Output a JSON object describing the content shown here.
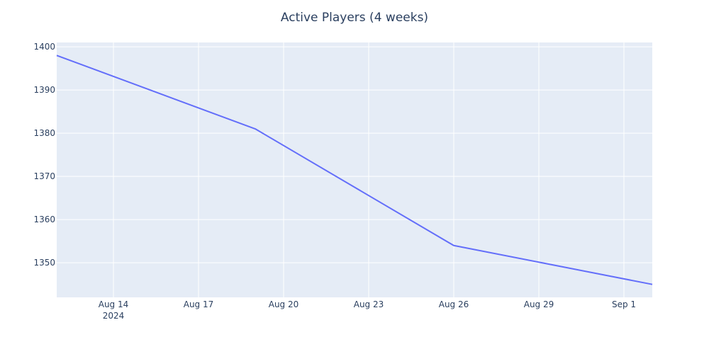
{
  "chart_data": {
    "type": "line",
    "title": "Active Players (4 weeks)",
    "xlabel": "",
    "ylabel": "",
    "x_type": "date",
    "x_range": [
      "2024-08-12",
      "2024-09-02"
    ],
    "y_range": [
      1342,
      1401
    ],
    "x_ticks": [
      {
        "date": "2024-08-14",
        "label": "Aug 14",
        "sublabel": "2024"
      },
      {
        "date": "2024-08-17",
        "label": "Aug 17"
      },
      {
        "date": "2024-08-20",
        "label": "Aug 20"
      },
      {
        "date": "2024-08-23",
        "label": "Aug 23"
      },
      {
        "date": "2024-08-26",
        "label": "Aug 26"
      },
      {
        "date": "2024-08-29",
        "label": "Aug 29"
      },
      {
        "date": "2024-09-01",
        "label": "Sep 1"
      }
    ],
    "y_ticks": [
      1350,
      1360,
      1370,
      1380,
      1390,
      1400
    ],
    "series": [
      {
        "color": "#636efa",
        "points": [
          {
            "x": "2024-08-12",
            "y": 1398
          },
          {
            "x": "2024-08-19",
            "y": 1381
          },
          {
            "x": "2024-08-26",
            "y": 1354
          },
          {
            "x": "2024-09-02",
            "y": 1345
          }
        ]
      }
    ],
    "grid": true,
    "plot_bgcolor": "#e5ecf6",
    "grid_color": "#ffffff"
  }
}
